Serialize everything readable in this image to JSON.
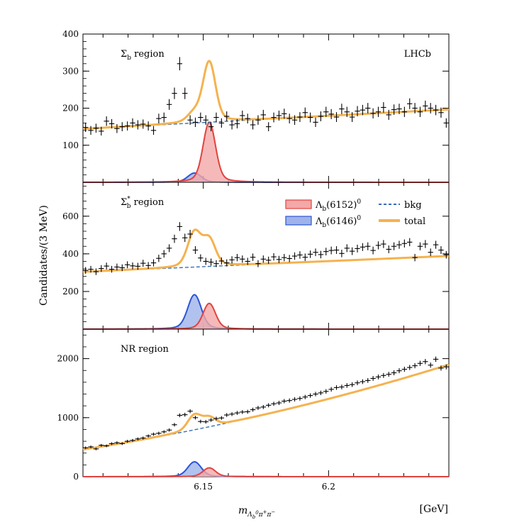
{
  "chart_data": {
    "type": "line",
    "xlabel": "m_{Λ_b^0 π^+ π^-}",
    "xunit": "[GeV]",
    "ylabel": "Candidates/(3 MeV)",
    "xlim": [
      6.102,
      6.248
    ],
    "xticks": [
      6.15,
      6.2
    ],
    "xtick_labels": [
      "6.15",
      "6.2"
    ],
    "colors": {
      "data": "#000000",
      "total": "#f5b24f",
      "bkg": "#3a6fb5",
      "lb6152_fill": "#f4a8a8",
      "lb6152_line": "#e0433f",
      "lb6146_fill": "#9fb3ea",
      "lb6146_line": "#2b55d6"
    },
    "legend": {
      "placement": "top-right of middle panel",
      "entries": [
        {
          "key": "lb6152",
          "base": "Λ",
          "sub": "b",
          "paren": "(6152)",
          "sup": "0"
        },
        {
          "key": "lb6146",
          "base": "Λ",
          "sub": "b",
          "paren": "(6146)",
          "sup": "0"
        },
        {
          "key": "bkg",
          "label": "bkg"
        },
        {
          "key": "total",
          "label": "total"
        }
      ]
    },
    "experiment_label": "LHCb",
    "panels": [
      {
        "label_base": "Σ",
        "label_sub": "b",
        "label_sup": "",
        "label_rest": " region",
        "ylim": [
          0,
          400
        ],
        "yticks": [
          100,
          200,
          300,
          400
        ],
        "ytick_labels": [
          "100",
          "200",
          "300",
          "400"
        ],
        "bkg": {
          "a": 144,
          "b": 0.36
        },
        "peak_6152": 162,
        "peak_6146": 25,
        "data_y": [
          148,
          140,
          146,
          138,
          165,
          158,
          145,
          150,
          152,
          160,
          155,
          157,
          152,
          140,
          172,
          175,
          210,
          240,
          320,
          240,
          168,
          162,
          175,
          168,
          150,
          175,
          160,
          178,
          155,
          158,
          180,
          172,
          155,
          168,
          182,
          150,
          175,
          180,
          185,
          172,
          168,
          176,
          188,
          175,
          162,
          178,
          190,
          184,
          176,
          198,
          190,
          176,
          192,
          195,
          200,
          186,
          190,
          202,
          182,
          196,
          198,
          190,
          212,
          200,
          190,
          206,
          200,
          195,
          188,
          160
        ]
      },
      {
        "label_base": "Σ",
        "label_sub": "b",
        "label_sup": "*",
        "label_rest": " region",
        "ylim": [
          0,
          780
        ],
        "yticks": [
          200,
          400,
          600
        ],
        "ytick_labels": [
          "200",
          "400",
          "600"
        ],
        "bkg": {
          "a": 304,
          "b": 0.58
        },
        "peak_6152": 137,
        "peak_6146": 183,
        "data_y": [
          312,
          318,
          305,
          322,
          335,
          318,
          330,
          326,
          342,
          336,
          334,
          350,
          338,
          352,
          376,
          400,
          430,
          480,
          545,
          485,
          505,
          420,
          378,
          360,
          356,
          348,
          362,
          352,
          368,
          380,
          372,
          360,
          382,
          348,
          372,
          366,
          384,
          370,
          380,
          375,
          388,
          394,
          382,
          398,
          408,
          396,
          412,
          418,
          420,
          402,
          430,
          414,
          428,
          436,
          440,
          418,
          445,
          452,
          424,
          440,
          448,
          455,
          462,
          380,
          440,
          452,
          408,
          448,
          420,
          395
        ]
      },
      {
        "label_base": "NR",
        "label_sub": "",
        "label_sup": "",
        "label_rest": " region",
        "ylim": [
          0,
          2500
        ],
        "yticks": [
          0,
          1000,
          2000
        ],
        "ytick_labels": [
          "0",
          "1000",
          "2000"
        ],
        "bkg": {
          "a": 460,
          "b": 6.5,
          "c": 0.023
        },
        "peak_6152": 150,
        "peak_6146": 252,
        "data_y": [
          490,
          505,
          470,
          532,
          522,
          560,
          575,
          560,
          600,
          615,
          640,
          655,
          690,
          720,
          735,
          760,
          790,
          880,
          1040,
          1050,
          1110,
          1000,
          935,
          930,
          960,
          985,
          995,
          1045,
          1060,
          1080,
          1095,
          1100,
          1135,
          1165,
          1180,
          1210,
          1235,
          1250,
          1280,
          1290,
          1310,
          1325,
          1350,
          1375,
          1400,
          1420,
          1445,
          1480,
          1510,
          1520,
          1545,
          1560,
          1590,
          1610,
          1630,
          1665,
          1690,
          1715,
          1735,
          1760,
          1795,
          1820,
          1850,
          1880,
          1920,
          1950,
          1890,
          1990,
          1840,
          1860
        ]
      }
    ]
  }
}
